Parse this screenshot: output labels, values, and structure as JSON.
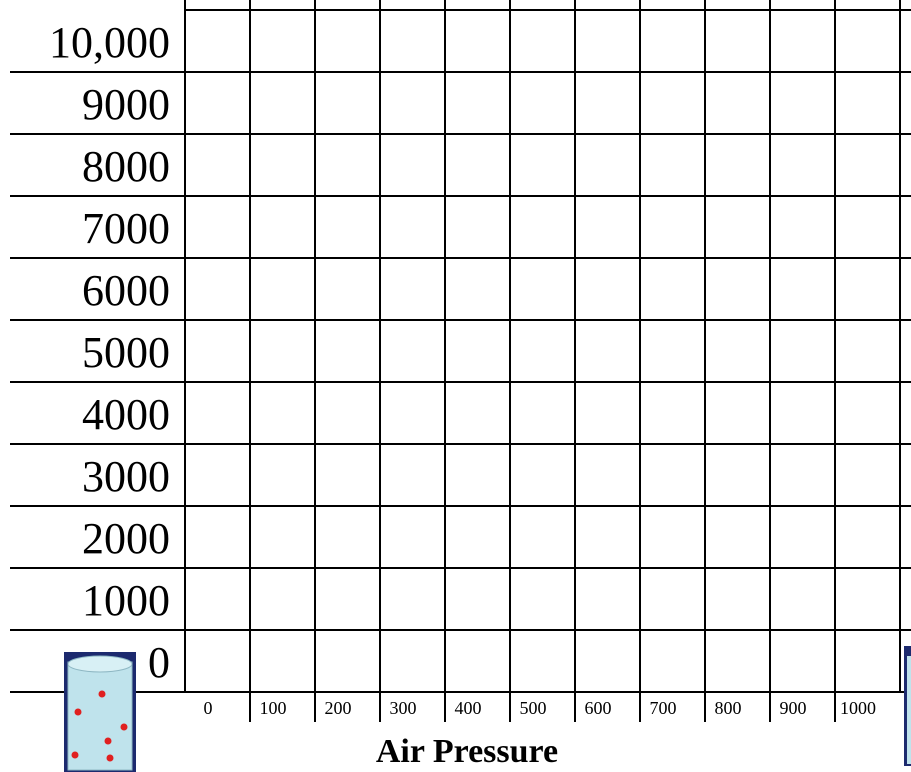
{
  "grid": {
    "y_labels": [
      "10,000",
      "9000",
      "8000",
      "7000",
      "6000",
      "5000",
      "4000",
      "3000",
      "2000",
      "1000",
      "0"
    ],
    "x_labels": [
      "0",
      "100",
      "200",
      "300",
      "400",
      "500",
      "600",
      "700",
      "800",
      "900",
      "1000"
    ],
    "x_axis_title": "Air Pressure"
  }
}
